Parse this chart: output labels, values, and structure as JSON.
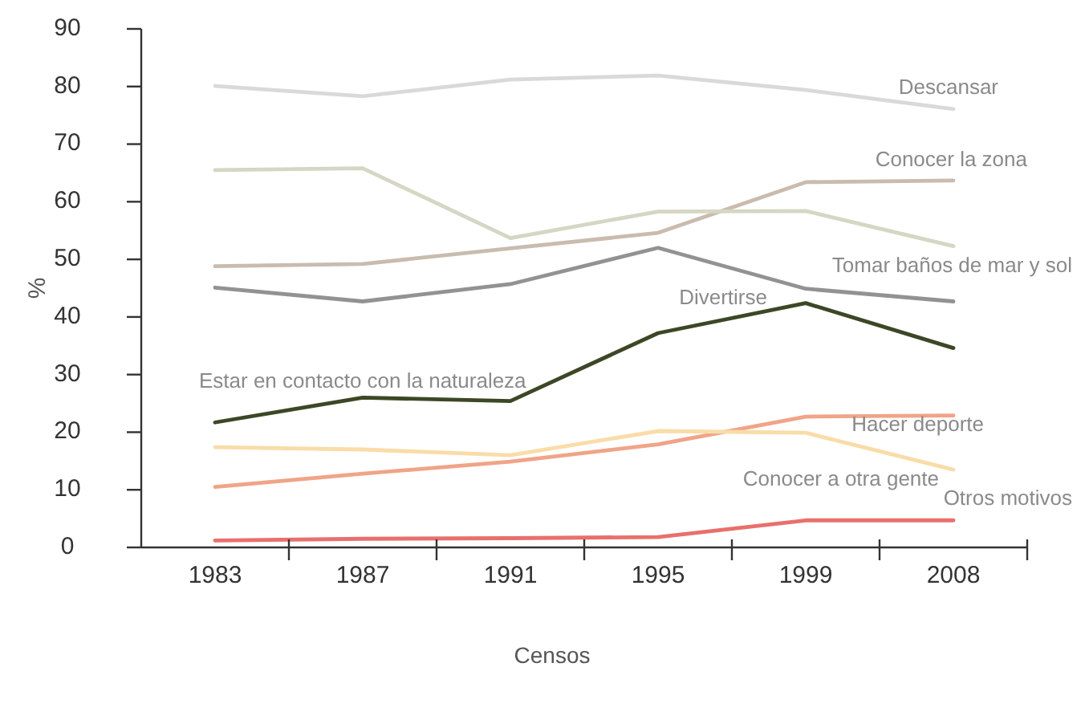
{
  "chart_data": {
    "type": "line",
    "xlabel": "Censos",
    "ylabel": "%",
    "categories": [
      "1983",
      "1987",
      "1991",
      "1995",
      "1999",
      "2008"
    ],
    "ylim": [
      0,
      90
    ],
    "yticks": [
      0,
      10,
      20,
      30,
      40,
      50,
      60,
      70,
      80,
      90
    ],
    "grid": false,
    "marker": "none",
    "line_style": "solid",
    "series": [
      {
        "name": "Descansar",
        "color": "#d9d9d9",
        "values": [
          80.1,
          78.3,
          81.2,
          81.9,
          79.4,
          76.1
        ]
      },
      {
        "name": "Conocer la zona",
        "color": "#c9bcaf",
        "values": [
          48.8,
          49.2,
          51.9,
          54.6,
          63.4,
          63.7
        ]
      },
      {
        "name": "Tomar baños de mar y sol",
        "color": "#d6d6c4",
        "values": [
          65.5,
          65.8,
          53.7,
          58.3,
          58.4,
          52.3
        ]
      },
      {
        "name": "Divertirse",
        "color": "#929292",
        "values": [
          45.1,
          42.7,
          45.7,
          52.0,
          44.9,
          42.7
        ]
      },
      {
        "name": "Estar en contacto con la naturaleza",
        "color": "#3c4726",
        "values": [
          21.7,
          26.0,
          25.4,
          37.2,
          42.4,
          34.6
        ]
      },
      {
        "name": "Hacer deporte",
        "color": "#f0a488",
        "values": [
          10.5,
          12.8,
          14.9,
          17.9,
          22.7,
          22.9
        ]
      },
      {
        "name": "Conocer a otra gente",
        "color": "#f9dca8",
        "values": [
          17.4,
          17.0,
          16.0,
          20.2,
          19.9,
          13.5
        ]
      },
      {
        "name": "Otros motivos",
        "color": "#e8706c",
        "values": [
          1.2,
          1.5,
          1.6,
          1.8,
          4.7,
          4.7
        ]
      }
    ]
  }
}
